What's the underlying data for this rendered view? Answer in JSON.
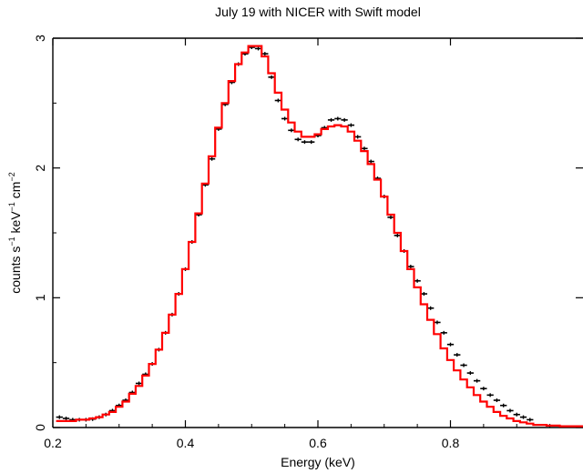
{
  "chart_data": {
    "type": "line",
    "title": "July 19 with NICER with Swift model",
    "xlabel": "Energy (keV)",
    "ylabel": {
      "base": "counts s",
      "sup1": "−1",
      "mid": " keV",
      "sup2": "−1",
      "tail": " cm",
      "sup3": "−2"
    },
    "xlim": [
      0.2,
      1.0
    ],
    "ylim": [
      0,
      3
    ],
    "xticks": [
      {
        "v": 0.2,
        "label": "0.2"
      },
      {
        "v": 0.4,
        "label": "0.4"
      },
      {
        "v": 0.6,
        "label": "0.6"
      },
      {
        "v": 0.8,
        "label": "0.8"
      }
    ],
    "yticks": [
      {
        "v": 0,
        "label": "0"
      },
      {
        "v": 1,
        "label": "1"
      },
      {
        "v": 2,
        "label": "2"
      },
      {
        "v": 3,
        "label": "3"
      }
    ],
    "grid": false,
    "legend": "none",
    "colors": {
      "data": "#000000",
      "model": "#ff0000"
    },
    "series": [
      {
        "kind": "data-points",
        "x": [
          0.21,
          0.22,
          0.23,
          0.24,
          0.25,
          0.26,
          0.27,
          0.28,
          0.29,
          0.3,
          0.31,
          0.32,
          0.33,
          0.34,
          0.35,
          0.36,
          0.37,
          0.38,
          0.39,
          0.4,
          0.41,
          0.42,
          0.43,
          0.44,
          0.45,
          0.46,
          0.47,
          0.48,
          0.49,
          0.5,
          0.51,
          0.52,
          0.53,
          0.54,
          0.55,
          0.56,
          0.57,
          0.58,
          0.59,
          0.6,
          0.61,
          0.62,
          0.63,
          0.64,
          0.65,
          0.66,
          0.67,
          0.68,
          0.69,
          0.7,
          0.71,
          0.72,
          0.73,
          0.74,
          0.75,
          0.76,
          0.77,
          0.78,
          0.79,
          0.8,
          0.81,
          0.82,
          0.83,
          0.84,
          0.85,
          0.86,
          0.87,
          0.88,
          0.89,
          0.9,
          0.91,
          0.92
        ],
        "y": [
          0.08,
          0.07,
          0.06,
          0.06,
          0.06,
          0.065,
          0.08,
          0.1,
          0.13,
          0.17,
          0.21,
          0.27,
          0.34,
          0.41,
          0.49,
          0.6,
          0.73,
          0.87,
          1.03,
          1.22,
          1.43,
          1.64,
          1.87,
          2.07,
          2.3,
          2.49,
          2.66,
          2.8,
          2.88,
          2.93,
          2.92,
          2.88,
          2.7,
          2.52,
          2.38,
          2.29,
          2.22,
          2.2,
          2.2,
          2.25,
          2.31,
          2.37,
          2.38,
          2.37,
          2.33,
          2.24,
          2.15,
          2.05,
          1.92,
          1.78,
          1.62,
          1.48,
          1.36,
          1.24,
          1.13,
          1.03,
          0.92,
          0.81,
          0.73,
          0.64,
          0.56,
          0.48,
          0.42,
          0.36,
          0.3,
          0.25,
          0.21,
          0.17,
          0.13,
          0.1,
          0.08,
          0.06
        ]
      },
      {
        "kind": "model-step",
        "x": [
          0.21,
          0.22,
          0.23,
          0.24,
          0.25,
          0.26,
          0.27,
          0.28,
          0.29,
          0.3,
          0.31,
          0.32,
          0.33,
          0.34,
          0.35,
          0.36,
          0.37,
          0.38,
          0.39,
          0.4,
          0.41,
          0.42,
          0.43,
          0.44,
          0.45,
          0.46,
          0.47,
          0.48,
          0.49,
          0.5,
          0.51,
          0.52,
          0.53,
          0.54,
          0.55,
          0.56,
          0.57,
          0.58,
          0.59,
          0.6,
          0.61,
          0.62,
          0.63,
          0.64,
          0.65,
          0.66,
          0.67,
          0.68,
          0.69,
          0.7,
          0.71,
          0.72,
          0.73,
          0.74,
          0.75,
          0.76,
          0.77,
          0.78,
          0.79,
          0.8,
          0.81,
          0.82,
          0.83,
          0.84,
          0.85,
          0.86,
          0.87,
          0.88,
          0.89,
          0.9,
          0.91,
          0.92,
          0.93,
          0.94,
          0.95,
          0.96,
          0.97,
          0.98,
          0.99,
          1.0
        ],
        "y": [
          0.05,
          0.05,
          0.05,
          0.06,
          0.06,
          0.07,
          0.08,
          0.1,
          0.12,
          0.16,
          0.2,
          0.26,
          0.32,
          0.4,
          0.49,
          0.6,
          0.73,
          0.87,
          1.03,
          1.22,
          1.43,
          1.65,
          1.88,
          2.09,
          2.31,
          2.5,
          2.67,
          2.8,
          2.89,
          2.94,
          2.94,
          2.86,
          2.73,
          2.58,
          2.45,
          2.35,
          2.28,
          2.24,
          2.24,
          2.26,
          2.3,
          2.32,
          2.33,
          2.32,
          2.28,
          2.21,
          2.13,
          2.03,
          1.91,
          1.78,
          1.64,
          1.5,
          1.36,
          1.22,
          1.08,
          0.95,
          0.83,
          0.72,
          0.61,
          0.52,
          0.44,
          0.37,
          0.31,
          0.25,
          0.2,
          0.16,
          0.12,
          0.09,
          0.07,
          0.05,
          0.04,
          0.03,
          0.02,
          0.02,
          0.015,
          0.015,
          0.01,
          0.01,
          0.01,
          0.01
        ]
      }
    ]
  }
}
